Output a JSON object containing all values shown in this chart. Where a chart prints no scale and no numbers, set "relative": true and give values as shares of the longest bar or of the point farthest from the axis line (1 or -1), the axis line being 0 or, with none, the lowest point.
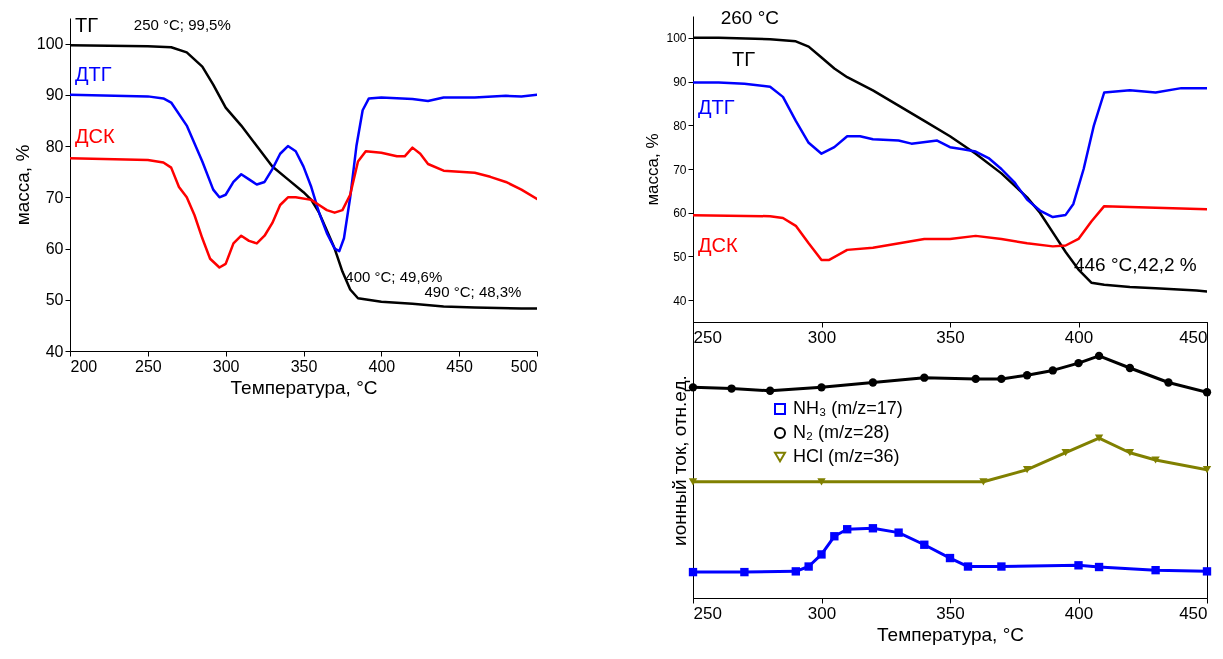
{
  "chart_data": [
    {
      "type": "line",
      "xlabel": "Температура, °C",
      "ylabel": "масса, %",
      "xlim": [
        200,
        500
      ],
      "ylim": [
        40,
        105
      ],
      "xticks": [
        200,
        250,
        300,
        350,
        400,
        450,
        500
      ],
      "yticks": [
        40,
        50,
        60,
        70,
        80,
        90,
        100
      ],
      "grid": false,
      "legend": false,
      "x": [
        200,
        250,
        265,
        275,
        285,
        292,
        300,
        310,
        320,
        330,
        340,
        350,
        355,
        360,
        365,
        370,
        375,
        380,
        385,
        400,
        420,
        440,
        460,
        490,
        500
      ],
      "series": [
        {
          "name": "ТГ",
          "color": "#000000",
          "values": [
            99.7,
            99.5,
            99.3,
            98.3,
            95.5,
            92,
            87.5,
            84,
            80,
            76,
            73.5,
            71,
            69.5,
            67,
            63.5,
            60,
            55.5,
            52,
            50.3,
            49.6,
            49.2,
            48.7,
            48.5,
            48.3,
            48.3
          ]
        },
        {
          "name": "ДТГ",
          "color": "#0000ff",
          "x": [
            200,
            250,
            260,
            265,
            275,
            285,
            292,
            296,
            300,
            305,
            310,
            315,
            320,
            325,
            330,
            335,
            340,
            345,
            350,
            355,
            360,
            365,
            370,
            373,
            376,
            380,
            384,
            388,
            392,
            400,
            420,
            430,
            440,
            460,
            480,
            490,
            500
          ],
          "values": [
            90,
            89.7,
            89.3,
            88.5,
            84,
            77,
            71.5,
            70,
            70.5,
            73,
            74.5,
            73.5,
            72.5,
            73,
            75.5,
            78.5,
            80,
            79,
            76,
            72,
            67,
            63,
            60,
            59.5,
            62,
            70,
            80,
            87,
            89.3,
            89.5,
            89.2,
            88.8,
            89.5,
            89.5,
            89.8,
            89.7,
            90
          ]
        },
        {
          "name": "ДСК",
          "color": "#ff0000",
          "x": [
            200,
            250,
            260,
            265,
            270,
            275,
            280,
            285,
            290,
            296,
            300,
            305,
            310,
            315,
            320,
            325,
            330,
            335,
            340,
            345,
            355,
            360,
            365,
            370,
            375,
            380,
            385,
            390,
            400,
            410,
            415,
            420,
            425,
            430,
            440,
            450,
            460,
            470,
            480,
            490,
            500
          ],
          "values": [
            77.6,
            77.3,
            76.8,
            75.8,
            72,
            70,
            66.5,
            62,
            58,
            56.3,
            57,
            61,
            62.5,
            61.5,
            61,
            62.5,
            65,
            68.5,
            70,
            70,
            69.5,
            68.5,
            67.5,
            67,
            67.5,
            70.5,
            77,
            79,
            78.7,
            78,
            78,
            79.7,
            78.5,
            76.5,
            75.2,
            75,
            74.8,
            74,
            73,
            71.5,
            69.7
          ]
        }
      ],
      "annotations": [
        {
          "text": "250 °C;  99,5%",
          "x": 250,
          "y": 99.5
        },
        {
          "text": "400 °C;  49,6%",
          "x": 400,
          "y": 49.6
        },
        {
          "text": "490 °C;  48,3%",
          "x": 490,
          "y": 48.3
        }
      ]
    },
    {
      "type": "line",
      "ylabel": "масса, %",
      "xlim": [
        250,
        450
      ],
      "ylim": [
        35,
        105
      ],
      "xticks": [
        250,
        300,
        350,
        400,
        450
      ],
      "yticks": [
        40,
        50,
        60,
        70,
        80,
        90,
        100
      ],
      "grid": false,
      "legend": false,
      "series": [
        {
          "name": "ТГ",
          "color": "#000000",
          "x": [
            250,
            260,
            280,
            290,
            295,
            300,
            305,
            310,
            320,
            330,
            340,
            350,
            360,
            370,
            380,
            385,
            390,
            395,
            400,
            405,
            410,
            420,
            430,
            446,
            450
          ],
          "values": [
            100,
            100,
            99.7,
            99.2,
            98,
            95.5,
            93,
            91,
            88,
            84.5,
            81,
            77.5,
            73.5,
            69,
            63.5,
            60,
            55.5,
            51,
            47,
            44,
            43.5,
            43,
            42.7,
            42.2,
            42
          ]
        },
        {
          "name": "ДТГ",
          "color": "#0000ff",
          "x": [
            250,
            260,
            270,
            280,
            285,
            290,
            295,
            300,
            305,
            310,
            315,
            320,
            330,
            335,
            345,
            350,
            355,
            360,
            365,
            370,
            375,
            380,
            385,
            390,
            395,
            398,
            402,
            406,
            410,
            420,
            430,
            440,
            450
          ],
          "values": [
            89.8,
            89.8,
            89.5,
            88.8,
            86.5,
            81,
            76,
            73.5,
            75,
            77.5,
            77.5,
            76.8,
            76.5,
            75.8,
            76.5,
            75,
            74.5,
            74,
            72.5,
            70,
            67,
            63,
            60.5,
            59,
            59.5,
            62,
            70,
            80,
            87.5,
            88,
            87.5,
            88.5,
            88.5
          ]
        },
        {
          "name": "ДСК",
          "color": "#ff0000",
          "x": [
            250,
            280,
            285,
            290,
            295,
            300,
            303,
            310,
            320,
            340,
            350,
            360,
            370,
            380,
            390,
            395,
            400,
            405,
            410,
            420,
            450
          ],
          "values": [
            59.4,
            59.2,
            58.8,
            57,
            53,
            49.2,
            49.2,
            51.5,
            52,
            54,
            54,
            54.7,
            54,
            53,
            52.3,
            52.5,
            54,
            58,
            61.5,
            61.3,
            60.8
          ]
        }
      ],
      "annotations": [
        {
          "text": "260 °C",
          "x": 260,
          "y": 100
        },
        {
          "text": "446 °C,42,2 %",
          "x": 446,
          "y": 42.2
        }
      ]
    },
    {
      "type": "line",
      "relative": true,
      "xlabel": "Температура, °C",
      "ylabel": "ионный ток, отн.ед.",
      "xlim": [
        250,
        450
      ],
      "xticks": [
        250,
        300,
        350,
        400,
        450
      ],
      "grid": false,
      "legend": "top left",
      "series": [
        {
          "name": "NH₃ (m/z=17)",
          "color": "#0000ff",
          "marker": "square",
          "x": [
            250,
            270,
            290,
            295,
            300,
            305,
            310,
            320,
            330,
            340,
            350,
            357,
            370,
            400,
            408,
            430,
            450
          ],
          "values": [
            0.107,
            0.107,
            0.11,
            0.13,
            0.18,
            0.255,
            0.284,
            0.288,
            0.27,
            0.22,
            0.165,
            0.13,
            0.13,
            0.135,
            0.128,
            0.115,
            0.11
          ]
        },
        {
          "name": "N₂ (m/z=28)",
          "color": "#000000",
          "marker": "circle",
          "x": [
            250,
            265,
            280,
            300,
            320,
            340,
            360,
            370,
            380,
            390,
            400,
            408,
            420,
            435,
            450
          ],
          "values": [
            0.87,
            0.865,
            0.856,
            0.87,
            0.89,
            0.91,
            0.905,
            0.905,
            0.92,
            0.94,
            0.97,
            1,
            0.95,
            0.89,
            0.85
          ]
        },
        {
          "name": "HCl (m/z=36)",
          "color": "#808000",
          "marker": "triangle",
          "x": [
            250,
            300,
            363,
            380,
            395,
            408,
            420,
            430,
            450
          ],
          "values": [
            0.48,
            0.48,
            0.48,
            0.53,
            0.6,
            0.66,
            0.6,
            0.57,
            0.53
          ]
        }
      ]
    }
  ]
}
